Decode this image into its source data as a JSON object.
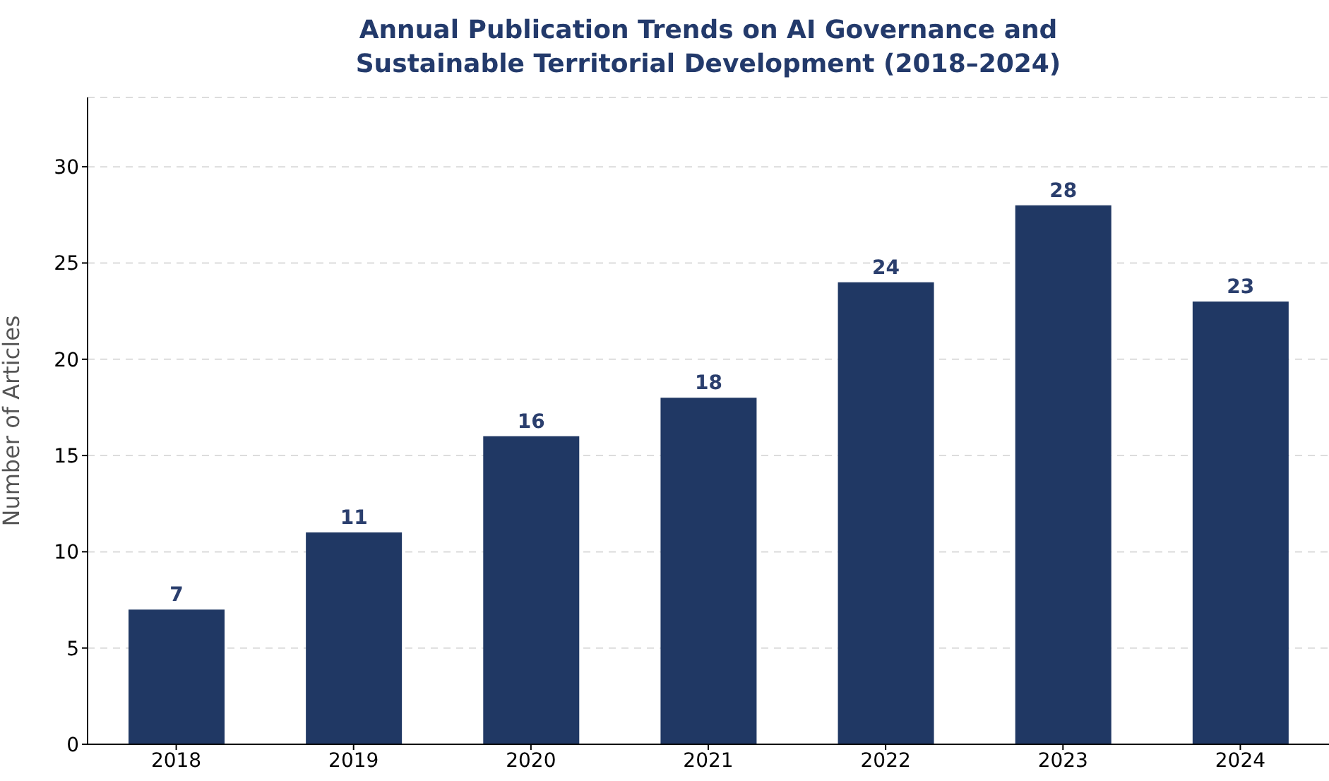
{
  "chart_data": {
    "type": "bar",
    "title": "Annual Publication Trends on AI Governance and\nSustainable Territorial Development (2018–2024)",
    "ylabel": "Number of Articles",
    "categories": [
      "2018",
      "2019",
      "2020",
      "2021",
      "2022",
      "2023",
      "2024"
    ],
    "values": [
      7,
      11,
      16,
      18,
      24,
      28,
      23
    ],
    "color": "#203864",
    "ylim": [
      0,
      33.6
    ],
    "yticks": [
      0,
      5,
      10,
      15,
      20,
      25,
      30
    ],
    "grid": "y",
    "data_labels": true
  }
}
